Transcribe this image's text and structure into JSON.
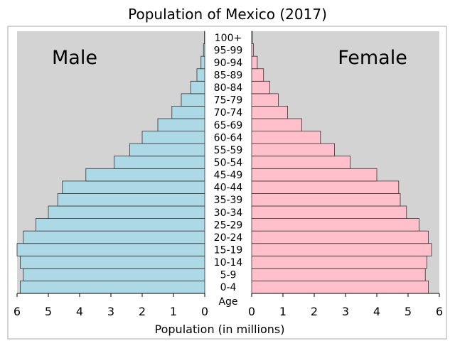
{
  "chart_data": {
    "type": "bar",
    "title": "Population of Mexico (2017)",
    "xlabel": "Population (in millions)",
    "ylabel": "Age",
    "xlim": [
      0,
      6
    ],
    "x_ticks": [
      "0",
      "1",
      "2",
      "3",
      "4",
      "5",
      "6"
    ],
    "categories": [
      "0-4",
      "5-9",
      "10-14",
      "15-19",
      "20-24",
      "25-29",
      "30-34",
      "35-39",
      "40-44",
      "45-49",
      "50-54",
      "55-59",
      "60-64",
      "65-69",
      "70-74",
      "75-79",
      "80-84",
      "85-89",
      "90-94",
      "95-99",
      "100+"
    ],
    "series": [
      {
        "name": "Male",
        "color": "#add8e6",
        "values": [
          5.9,
          5.8,
          5.9,
          6.0,
          5.8,
          5.4,
          5.0,
          4.7,
          4.55,
          3.8,
          2.9,
          2.4,
          2.0,
          1.5,
          1.05,
          0.75,
          0.45,
          0.25,
          0.12,
          0.04,
          0.01
        ]
      },
      {
        "name": "Female",
        "color": "#ffc0cb",
        "values": [
          5.65,
          5.55,
          5.6,
          5.75,
          5.65,
          5.35,
          4.95,
          4.75,
          4.7,
          4.0,
          3.15,
          2.65,
          2.2,
          1.6,
          1.15,
          0.85,
          0.58,
          0.38,
          0.18,
          0.06,
          0.02
        ]
      }
    ],
    "background_color": "#d3d3d3",
    "grid": false
  }
}
